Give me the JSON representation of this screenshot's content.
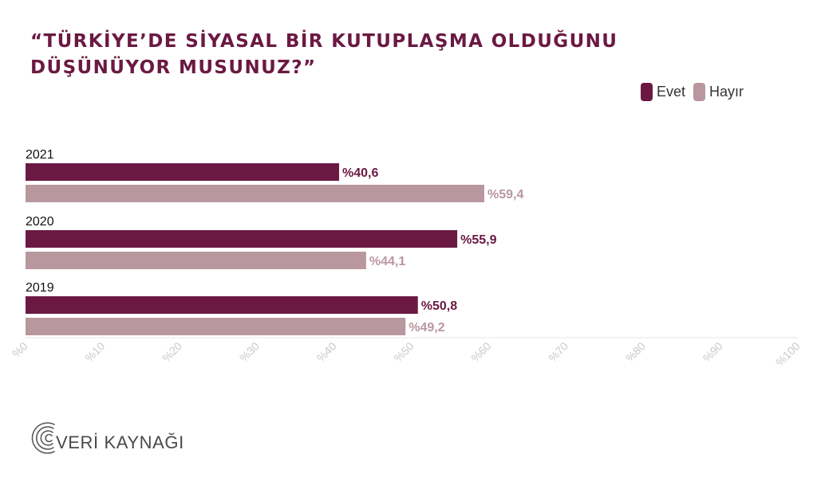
{
  "title": "“TÜRKİYE’DE SİYASAL BİR KUTUPLAŞMA OLDUĞUNU DÜŞÜNÜYOR MUSUNUZ?”",
  "logo": {
    "text": "VERİ KAYNAĞI"
  },
  "colors": {
    "evet": "#6b1943",
    "hayir": "#b9979f",
    "grid": "#e4e4e4",
    "tick": "#c9c9c9"
  },
  "chart_data": {
    "type": "bar",
    "orientation": "horizontal",
    "title": "“TÜRKİYE’DE SİYASAL BİR KUTUPLAŞMA OLDUĞUNU DÜŞÜNÜYOR MUSUNUZ?”",
    "categories": [
      "2021",
      "2020",
      "2019"
    ],
    "series": [
      {
        "name": "Evet",
        "values": [
          40.6,
          55.9,
          50.8
        ],
        "labels": [
          "%40,6",
          "%55,9",
          "%50,8"
        ]
      },
      {
        "name": "Hayır",
        "values": [
          59.4,
          44.1,
          49.2
        ],
        "labels": [
          "%59,4",
          "%44,1",
          "%49,2"
        ]
      }
    ],
    "xlim": [
      0,
      100
    ],
    "x_ticks": [
      "%0",
      "%10",
      "%20",
      "%30",
      "%40",
      "%50",
      "%60",
      "%70",
      "%80",
      "%90",
      "%100"
    ],
    "legend_position": "top-right",
    "grid": false
  }
}
